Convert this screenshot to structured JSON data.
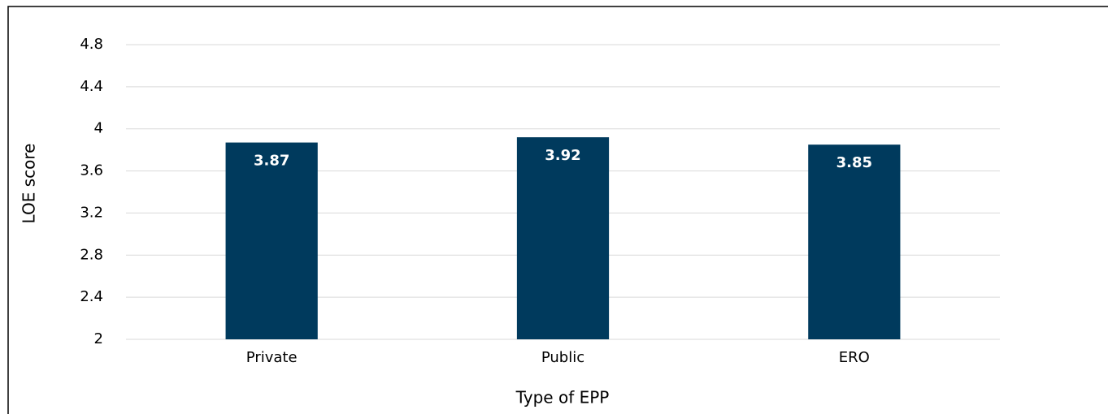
{
  "chart_data": {
    "type": "bar",
    "categories": [
      "Private",
      "Public",
      "ERO"
    ],
    "values": [
      3.87,
      3.92,
      3.85
    ],
    "color": "#003a5d",
    "xlabel": "Type of EPP",
    "ylabel": "LOE score",
    "ylim": [
      2,
      4.8
    ],
    "yticks": [
      2,
      2.4,
      2.8,
      3.2,
      3.6,
      4,
      4.4,
      4.8
    ],
    "grid": true
  }
}
